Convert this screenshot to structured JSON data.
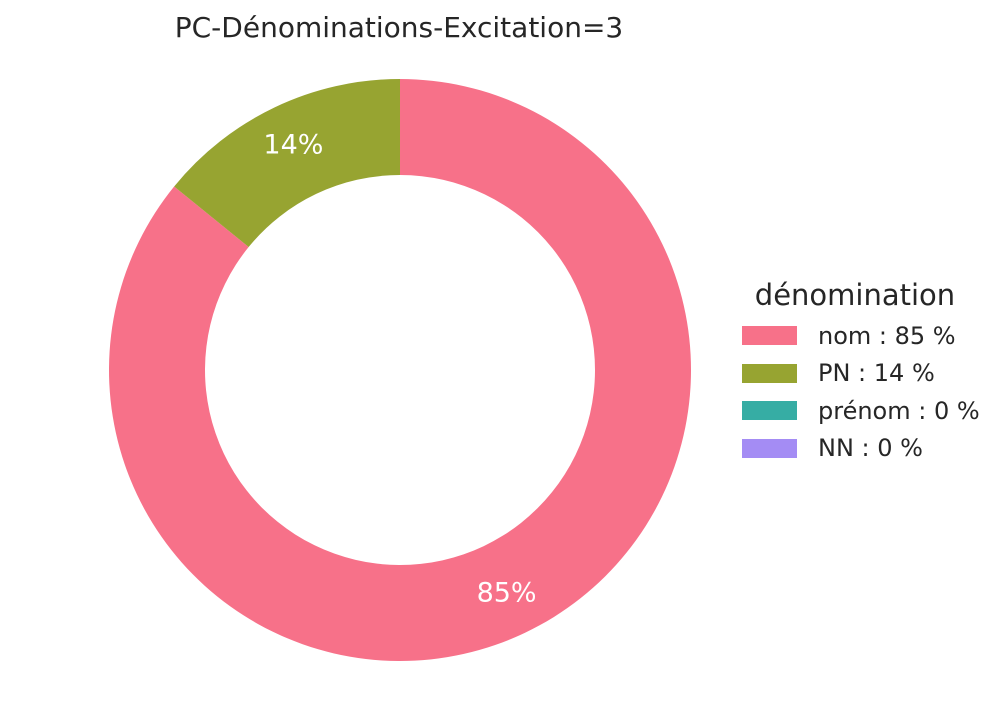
{
  "chart_data": {
    "type": "pie",
    "title": "PC-Dénominations-Excitation=3",
    "legend_title": "dénomination",
    "legend_placement": "right",
    "donut": true,
    "slices": [
      {
        "label": "nom",
        "value": 85,
        "legend": "nom : 85 %",
        "data_label": "85%",
        "color": "#f77189"
      },
      {
        "label": "PN",
        "value": 14,
        "legend": "PN : 14 %",
        "data_label": "14%",
        "color": "#97a431"
      },
      {
        "label": "prénom",
        "value": 0,
        "legend": "prénom : 0 %",
        "data_label": "",
        "color": "#36ada4"
      },
      {
        "label": "NN",
        "value": 0,
        "legend": "NN : 0 %",
        "data_label": "",
        "color": "#a48cf4"
      }
    ]
  }
}
